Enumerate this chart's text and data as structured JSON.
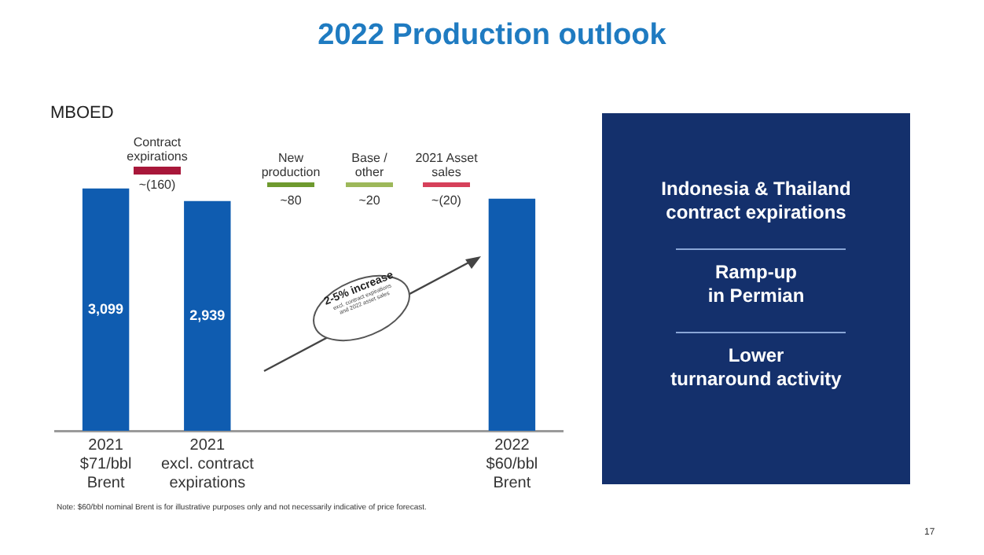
{
  "chart_data": {
    "type": "bar",
    "title": "2022 Production outlook",
    "ylabel": "MBOED",
    "categories": [
      "2021\n$71/bbl\nBrent",
      "2021\nexcl. contract\nexpirations",
      null,
      null,
      "2022\n$60/bbl\nBrent"
    ],
    "values": [
      3099,
      2939,
      null,
      null,
      2970
    ],
    "value_labels": [
      "3,099",
      "2,939",
      null,
      null,
      null
    ],
    "color": "#0f5cb0",
    "grid": false,
    "legend": false,
    "tick_labels": "x",
    "annotations": [
      "Contract\nexpirations",
      "~(160)",
      "New\nproduction",
      "~80",
      "Base /\nother",
      "~20",
      "2021 Asset\nsales",
      "~(20)",
      "2-5% increase",
      "excl. contract expirations\nand 2022 asset sales",
      "Indonesia & Thailand\ncontract expirations",
      "Ramp-up\nin Permian",
      "Lower\nturnaround activity",
      "Note: $60/bbl nominal Brent is for illustrative purposes only and not necessarily indicative of price forecast.",
      "17"
    ]
  }
}
